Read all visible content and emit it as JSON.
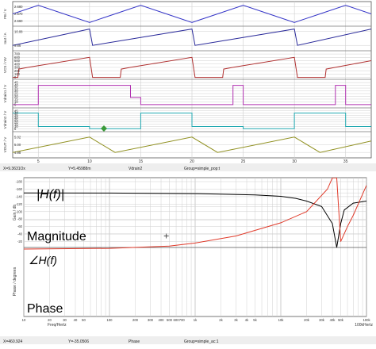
{
  "transient": {
    "panels": [
      {
        "label": "FB / V",
        "ticks": [
          "2.680",
          "2.670",
          "2.660"
        ],
        "ylim": [
          2.655,
          2.685
        ],
        "color": "#3535c8",
        "type": "line"
      },
      {
        "label": "Iout / A",
        "ticks": [
          "10.08",
          "9.86"
        ],
        "ylim": [
          9.8,
          10.14
        ],
        "color": "#2a2a9a",
        "type": "line"
      },
      {
        "label": "VCS / mV",
        "ticks": [
          "700",
          "600",
          "500",
          "400",
          "300",
          "200",
          "100",
          "0"
        ],
        "ylim": [
          -10,
          750
        ],
        "color": "#b03030",
        "type": "line"
      },
      {
        "label": "Vdrain1 / V",
        "ticks": [
          "45",
          "40",
          "35",
          "30",
          "25",
          "20",
          "15",
          "10",
          "5"
        ],
        "ylim": [
          2,
          48
        ],
        "color": "#b030b0",
        "type": "line"
      },
      {
        "label": "Vdrain2 / V",
        "ticks": [
          "45",
          "40",
          "35",
          "30",
          "25",
          "20",
          "15",
          "10",
          "5"
        ],
        "ylim": [
          2,
          48
        ],
        "color": "#20a8b0",
        "type": "line"
      },
      {
        "label": "VOUT / V",
        "ticks": [
          "5.02",
          "5.00",
          "4.98"
        ],
        "ylim": [
          4.97,
          5.03
        ],
        "color": "#909020",
        "type": "line"
      }
    ],
    "x_ticks": [
      "5",
      "10",
      "15",
      "20",
      "25",
      "30",
      "35"
    ],
    "x_range": [
      2.5,
      37.5
    ],
    "status": {
      "x": "X=9.3631Ox",
      "y": "Y=5.45988m",
      "series": "Vdrain2",
      "group": "Group=simple_pop:t"
    }
  },
  "chart_data": [
    {
      "type": "line",
      "title": "",
      "xlabel": "",
      "xlim": [
        2.5,
        37.5
      ],
      "series": [
        {
          "name": "FB / V",
          "x": [
            2.5,
            5,
            7.5,
            10,
            12.5,
            15,
            17.5,
            20,
            22.5,
            25,
            27.5,
            30,
            32.5,
            35,
            37.5
          ],
          "values": [
            2.67,
            2.682,
            2.67,
            2.658,
            2.67,
            2.682,
            2.67,
            2.658,
            2.67,
            2.682,
            2.67,
            2.658,
            2.67,
            2.682,
            2.67
          ]
        },
        {
          "name": "Iout / A",
          "x": [
            2.5,
            10,
            10.3,
            20,
            20.3,
            30,
            30.3,
            37.5
          ],
          "values": [
            9.86,
            10.12,
            9.86,
            10.12,
            9.86,
            10.12,
            9.86,
            10.12
          ]
        },
        {
          "name": "VCS / mV",
          "x": [
            2.5,
            3,
            3.1,
            4,
            10,
            10.3,
            13,
            13.1,
            14,
            20,
            20.3,
            23,
            23.1,
            24,
            30,
            30.3,
            33,
            33.1,
            34,
            37.5
          ],
          "values": [
            0,
            0,
            250,
            300,
            600,
            0,
            0,
            250,
            300,
            600,
            0,
            0,
            250,
            300,
            600,
            0,
            0,
            250,
            300,
            500
          ]
        },
        {
          "name": "Vdrain1 / V",
          "x": [
            2.5,
            5,
            5,
            14,
            14,
            15,
            15,
            24,
            24,
            25,
            25,
            34,
            34,
            35,
            35,
            37.5
          ],
          "values": [
            5,
            5,
            40,
            40,
            18,
            18,
            5,
            5,
            40,
            40,
            5,
            5,
            40,
            40,
            5,
            5
          ]
        },
        {
          "name": "Vdrain2 / V",
          "x": [
            2.5,
            5,
            5,
            10,
            10,
            15,
            15,
            20,
            20,
            25,
            25,
            30,
            30,
            35,
            35,
            37.5
          ],
          "values": [
            40,
            40,
            10,
            10,
            5,
            5,
            40,
            40,
            10,
            10,
            5,
            5,
            40,
            40,
            10,
            10
          ]
        },
        {
          "name": "VOUT / V",
          "x": [
            2.5,
            10,
            12.5,
            20,
            22.5,
            30,
            32.5,
            37.5
          ],
          "values": [
            4.98,
            5.02,
            4.98,
            5.02,
            4.98,
            5.02,
            4.98,
            5.01
          ]
        }
      ]
    },
    {
      "type": "line",
      "title": "",
      "xlabel": "Freq/Hertz",
      "xscale": "log",
      "xlim": [
        10,
        100000
      ],
      "series": [
        {
          "name": "Gain / db",
          "x": [
            10,
            100,
            1000,
            5000,
            10000,
            15000,
            20000,
            30000,
            40000,
            45000,
            50000,
            55000,
            70000,
            100000
          ],
          "values": [
            0,
            -0.2,
            -1,
            -3,
            -5,
            -8,
            -12,
            -20,
            -45,
            -80,
            -45,
            -25,
            -15,
            -12
          ]
        },
        {
          "name": "Phase / degrees",
          "x": [
            10,
            100,
            500,
            1000,
            3000,
            10000,
            20000,
            35000,
            40000,
            45000,
            50000,
            60000,
            70000,
            100000
          ],
          "values": [
            0,
            -2,
            -8,
            -16,
            -35,
            -70,
            -100,
            -160,
            -190,
            -360,
            -20,
            -60,
            -90,
            -170
          ]
        }
      ]
    }
  ],
  "bode": {
    "magnitude": {
      "axis_label": "Gain / db",
      "formula": "|H(f)|",
      "caption": "Magnitude",
      "ylim": [
        -80,
        20
      ],
      "color": "#000000"
    },
    "phase": {
      "axis_label": "Phase / degrees",
      "formula": "∠H(f)",
      "caption": "Phase",
      "ticks": [
        "-20",
        "-40",
        "-60",
        "-80",
        "-100",
        "-120",
        "-140",
        "-160",
        "-180"
      ],
      "ylim": [
        -180,
        0
      ],
      "color": "#e03a2a"
    },
    "x_ticks": [
      "10",
      "20",
      "30",
      "40",
      "50",
      "100",
      "200",
      "300",
      "400",
      "500",
      "600",
      "700",
      "1k",
      "2k",
      "3k",
      "4k",
      "5k",
      "10k",
      "20k",
      "30k",
      "40k",
      "50k",
      "100k"
    ],
    "x_label": "Freq/Hertz",
    "x_unit": "100kHertz",
    "status": {
      "x": "X=460.924",
      "y": "Y=-35.0506",
      "series": "Phase",
      "group": "Group=simple_ac:1"
    }
  },
  "colors": {
    "grid": "#cfcfcf",
    "frame": "#555555",
    "status_bg": "#eeeeee"
  }
}
